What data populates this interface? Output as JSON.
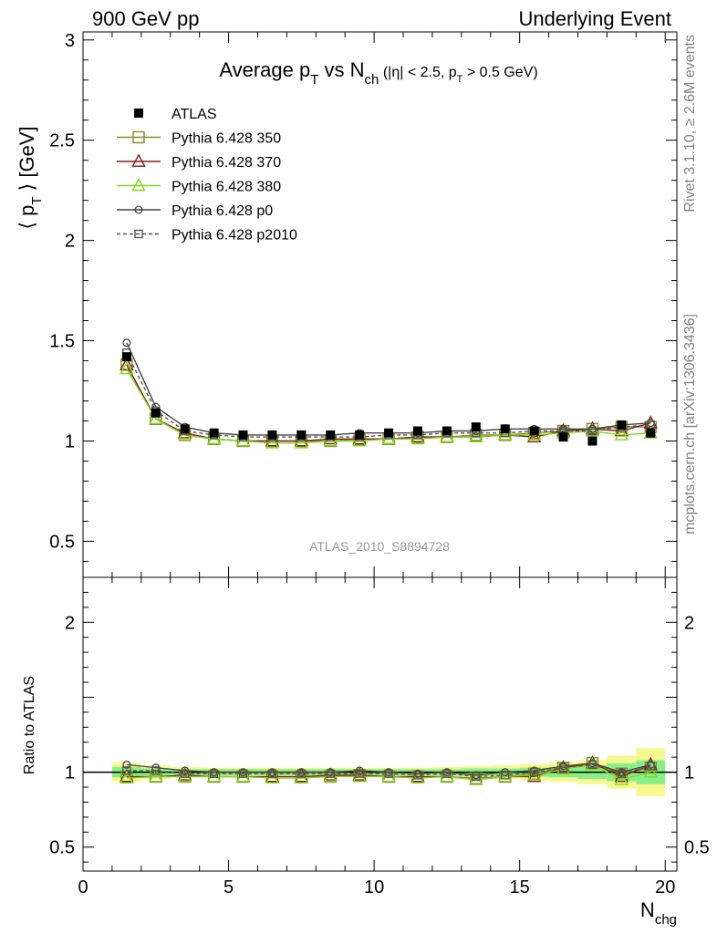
{
  "header": {
    "left": "900 GeV pp",
    "right": "Underlying Event"
  },
  "side_labels": {
    "rivet": "Rivet 3.1.10, ≥ 2.6M events",
    "mcplots": "mcplots.cern.ch [arXiv:1306.3436]"
  },
  "analysis_id": "ATLAS_2010_S8894728",
  "colors": {
    "data": "#000000",
    "p350": "#8b8b1e",
    "p370": "#8b1a1a",
    "p380": "#7fd81a",
    "p0": "#444444",
    "p2010": "#555555",
    "band_stat": "#88f088",
    "band_total": "#f8f890"
  },
  "chart_data": [
    {
      "type": "scatter",
      "title": "Average p_T vs N_ch (|η| < 2.5, p_T > 0.5 GeV)",
      "xlabel": "",
      "ylabel": "⟨ p_T ⟩ [GeV]",
      "xlim": [
        0,
        20.4
      ],
      "ylim": [
        0.32,
        3.04
      ],
      "yticks": [
        0.5,
        1,
        1.5,
        2,
        2.5,
        3
      ],
      "legend_position": "top-left",
      "x": [
        1.5,
        2.5,
        3.5,
        4.5,
        5.5,
        6.5,
        7.5,
        8.5,
        9.5,
        10.5,
        11.5,
        12.5,
        13.5,
        14.5,
        15.5,
        16.5,
        17.5,
        18.5,
        19.5
      ],
      "series": [
        {
          "name": "ATLAS",
          "key": "data",
          "style": "filled-square",
          "values": [
            1.42,
            1.14,
            1.06,
            1.04,
            1.03,
            1.03,
            1.03,
            1.03,
            1.03,
            1.04,
            1.05,
            1.05,
            1.07,
            1.06,
            1.05,
            1.02,
            1.0,
            1.08,
            1.04
          ]
        },
        {
          "name": "Pythia 6.428 350",
          "key": "p350",
          "style": "open-square",
          "values": [
            1.38,
            1.11,
            1.03,
            1.01,
            1.0,
            1.0,
            1.0,
            1.0,
            1.01,
            1.01,
            1.02,
            1.02,
            1.03,
            1.03,
            1.04,
            1.05,
            1.06,
            1.07,
            1.07
          ]
        },
        {
          "name": "Pythia 6.428 370",
          "key": "p370",
          "style": "open-triangle",
          "values": [
            1.38,
            1.11,
            1.04,
            1.01,
            1.0,
            1.0,
            1.0,
            1.01,
            1.01,
            1.01,
            1.02,
            1.02,
            1.02,
            1.03,
            1.02,
            1.05,
            1.06,
            1.05,
            1.09
          ]
        },
        {
          "name": "Pythia 6.428 380",
          "key": "p380",
          "style": "open-triangle",
          "values": [
            1.36,
            1.11,
            1.03,
            1.01,
            1.0,
            0.99,
            0.99,
            1.0,
            1.0,
            1.01,
            1.01,
            1.02,
            1.02,
            1.03,
            1.03,
            1.04,
            1.05,
            1.03,
            1.04
          ]
        },
        {
          "name": "Pythia 6.428 p0",
          "key": "p0",
          "style": "open-circle",
          "values": [
            1.49,
            1.17,
            1.07,
            1.04,
            1.03,
            1.03,
            1.03,
            1.03,
            1.04,
            1.04,
            1.04,
            1.05,
            1.05,
            1.06,
            1.06,
            1.06,
            1.06,
            1.08,
            1.09
          ]
        },
        {
          "name": "Pythia 6.428 p2010",
          "key": "p2010",
          "style": "open-square-dashed",
          "values": [
            1.44,
            1.15,
            1.05,
            1.03,
            1.02,
            1.02,
            1.02,
            1.02,
            1.02,
            1.03,
            1.03,
            1.04,
            1.04,
            1.04,
            1.05,
            1.05,
            1.05,
            1.07,
            1.08
          ]
        }
      ]
    },
    {
      "type": "scatter",
      "title": "",
      "xlabel": "N_chg",
      "ylabel": "Ratio to ATLAS",
      "xlim": [
        0,
        20.4
      ],
      "ylim": [
        0.34,
        2.3
      ],
      "yticks": [
        0.5,
        1,
        2
      ],
      "xticks": [
        0,
        5,
        10,
        15,
        20
      ],
      "reference_line": 1,
      "bands": {
        "x_low": [
          1,
          2,
          3,
          4,
          5,
          6,
          7,
          8,
          9,
          10,
          11,
          12,
          13,
          14,
          15,
          16,
          17,
          18,
          19
        ],
        "x_high": [
          2,
          3,
          4,
          5,
          6,
          7,
          8,
          9,
          10,
          11,
          12,
          13,
          14,
          15,
          16,
          17,
          18,
          19,
          20
        ],
        "stat_halfwidth": [
          0.035,
          0.025,
          0.02,
          0.02,
          0.02,
          0.02,
          0.02,
          0.02,
          0.02,
          0.02,
          0.02,
          0.02,
          0.025,
          0.025,
          0.03,
          0.035,
          0.045,
          0.06,
          0.08
        ],
        "total_halfwidth": [
          0.065,
          0.045,
          0.035,
          0.03,
          0.03,
          0.03,
          0.03,
          0.03,
          0.03,
          0.03,
          0.03,
          0.035,
          0.04,
          0.045,
          0.055,
          0.065,
          0.08,
          0.11,
          0.16
        ]
      },
      "x": [
        1.5,
        2.5,
        3.5,
        4.5,
        5.5,
        6.5,
        7.5,
        8.5,
        9.5,
        10.5,
        11.5,
        12.5,
        13.5,
        14.5,
        15.5,
        16.5,
        17.5,
        18.5,
        19.5
      ],
      "series": [
        {
          "name": "Pythia 6.428 350",
          "key": "p350",
          "style": "open-square",
          "values": [
            0.97,
            0.97,
            0.97,
            0.97,
            0.97,
            0.97,
            0.97,
            0.97,
            0.98,
            0.97,
            0.97,
            0.97,
            0.96,
            0.97,
            0.99,
            1.03,
            1.06,
            0.99,
            1.03
          ]
        },
        {
          "name": "Pythia 6.428 370",
          "key": "p370",
          "style": "open-triangle",
          "values": [
            0.97,
            0.97,
            0.98,
            0.97,
            0.97,
            0.97,
            0.97,
            0.98,
            0.98,
            0.97,
            0.97,
            0.97,
            0.95,
            0.97,
            0.97,
            1.03,
            1.06,
            0.97,
            1.05
          ]
        },
        {
          "name": "Pythia 6.428 380",
          "key": "p380",
          "style": "open-triangle",
          "values": [
            0.96,
            0.97,
            0.97,
            0.97,
            0.97,
            0.96,
            0.96,
            0.97,
            0.97,
            0.97,
            0.96,
            0.97,
            0.95,
            0.97,
            0.98,
            1.02,
            1.05,
            0.95,
            1.0
          ]
        },
        {
          "name": "Pythia 6.428 p0",
          "key": "p0",
          "style": "open-circle",
          "values": [
            1.05,
            1.03,
            1.01,
            1.0,
            1.0,
            1.0,
            1.0,
            1.0,
            1.01,
            1.0,
            0.99,
            1.0,
            0.98,
            1.0,
            1.01,
            1.04,
            1.06,
            1.0,
            1.05
          ]
        },
        {
          "name": "Pythia 6.428 p2010",
          "key": "p2010",
          "style": "open-square-dashed",
          "values": [
            1.01,
            1.01,
            0.99,
            0.99,
            0.99,
            0.99,
            0.99,
            0.99,
            0.99,
            0.99,
            0.98,
            0.99,
            0.97,
            0.98,
            1.0,
            1.03,
            1.05,
            0.99,
            1.04
          ]
        }
      ]
    }
  ]
}
